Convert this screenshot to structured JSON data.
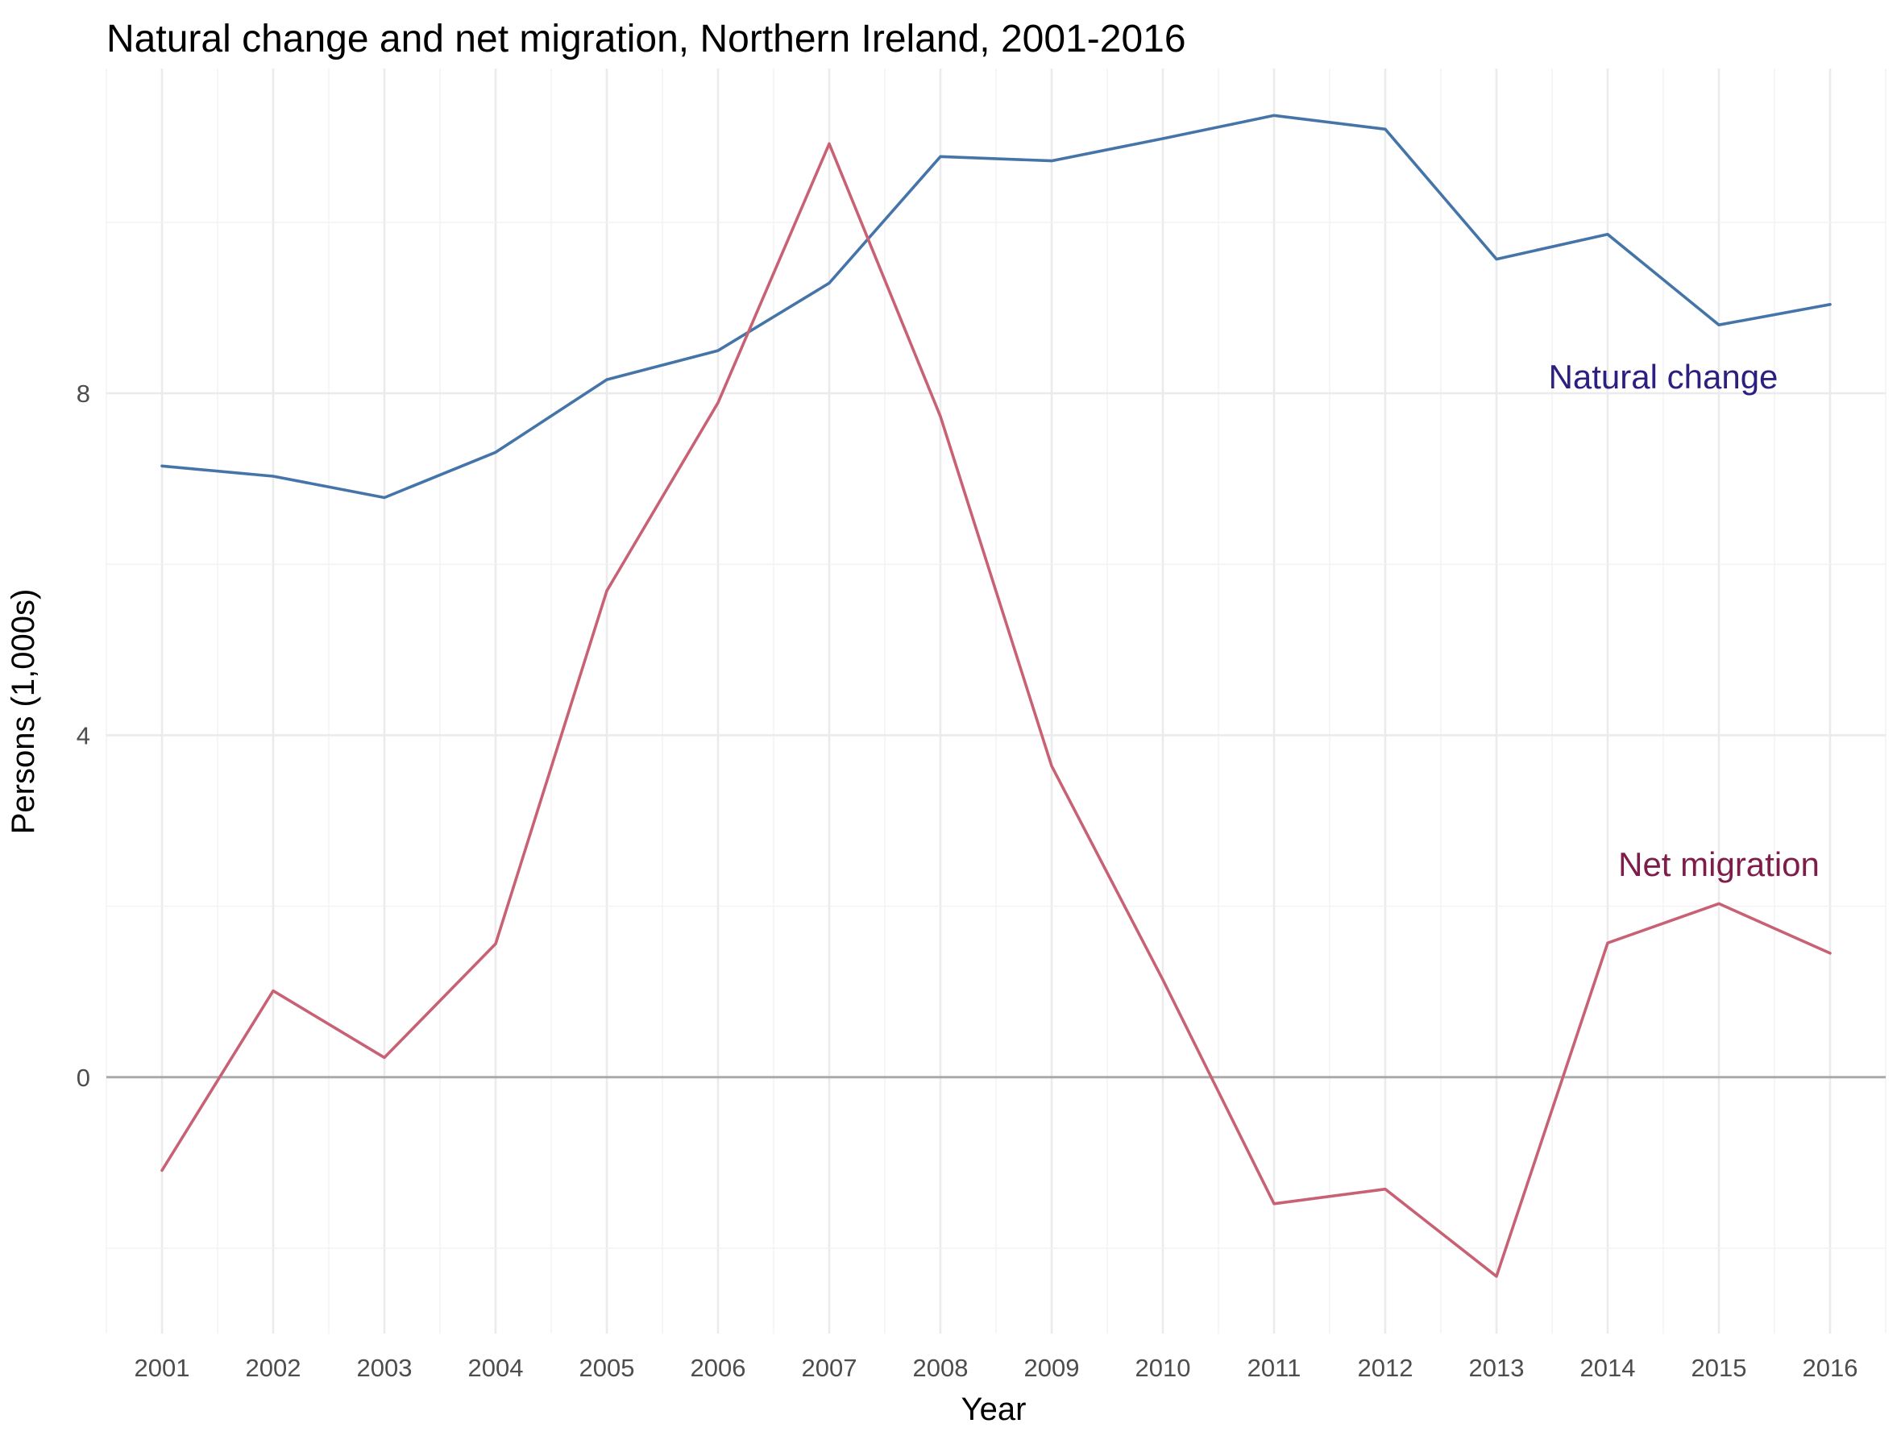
{
  "chart_data": {
    "type": "line",
    "title": "Natural change and net migration, Northern Ireland, 2001-2016",
    "xlabel": "Year",
    "ylabel": "Persons (1,000s)",
    "x": [
      2001,
      2002,
      2003,
      2004,
      2005,
      2006,
      2007,
      2008,
      2009,
      2010,
      2011,
      2012,
      2013,
      2014,
      2015,
      2016
    ],
    "x_tick_labels": [
      "2001",
      "2002",
      "2003",
      "2004",
      "2005",
      "2006",
      "2007",
      "2008",
      "2009",
      "2010",
      "2011",
      "2012",
      "2013",
      "2014",
      "2015",
      "2016"
    ],
    "y_ticks": [
      0,
      4,
      8
    ],
    "y_tick_labels": [
      "0",
      "4",
      "8"
    ],
    "xlim": [
      2000.5,
      2016.5
    ],
    "ylim": [
      -3.0,
      11.8
    ],
    "grid": true,
    "legend": "direct labels",
    "series": [
      {
        "name": "Natural change",
        "color": "#4575a8",
        "label_color": "#2b2080",
        "values": [
          7.15,
          7.03,
          6.78,
          7.31,
          8.16,
          8.5,
          9.29,
          10.77,
          10.72,
          10.98,
          11.25,
          11.09,
          9.57,
          9.86,
          8.8,
          9.04
        ]
      },
      {
        "name": "Net migration",
        "color": "#c86174",
        "label_color": "#7f1d4a",
        "values": [
          -1.09,
          1.01,
          0.23,
          1.56,
          5.69,
          7.89,
          10.92,
          7.73,
          3.64,
          1.14,
          -1.48,
          -1.31,
          -2.33,
          1.57,
          2.03,
          1.45
        ]
      }
    ]
  }
}
